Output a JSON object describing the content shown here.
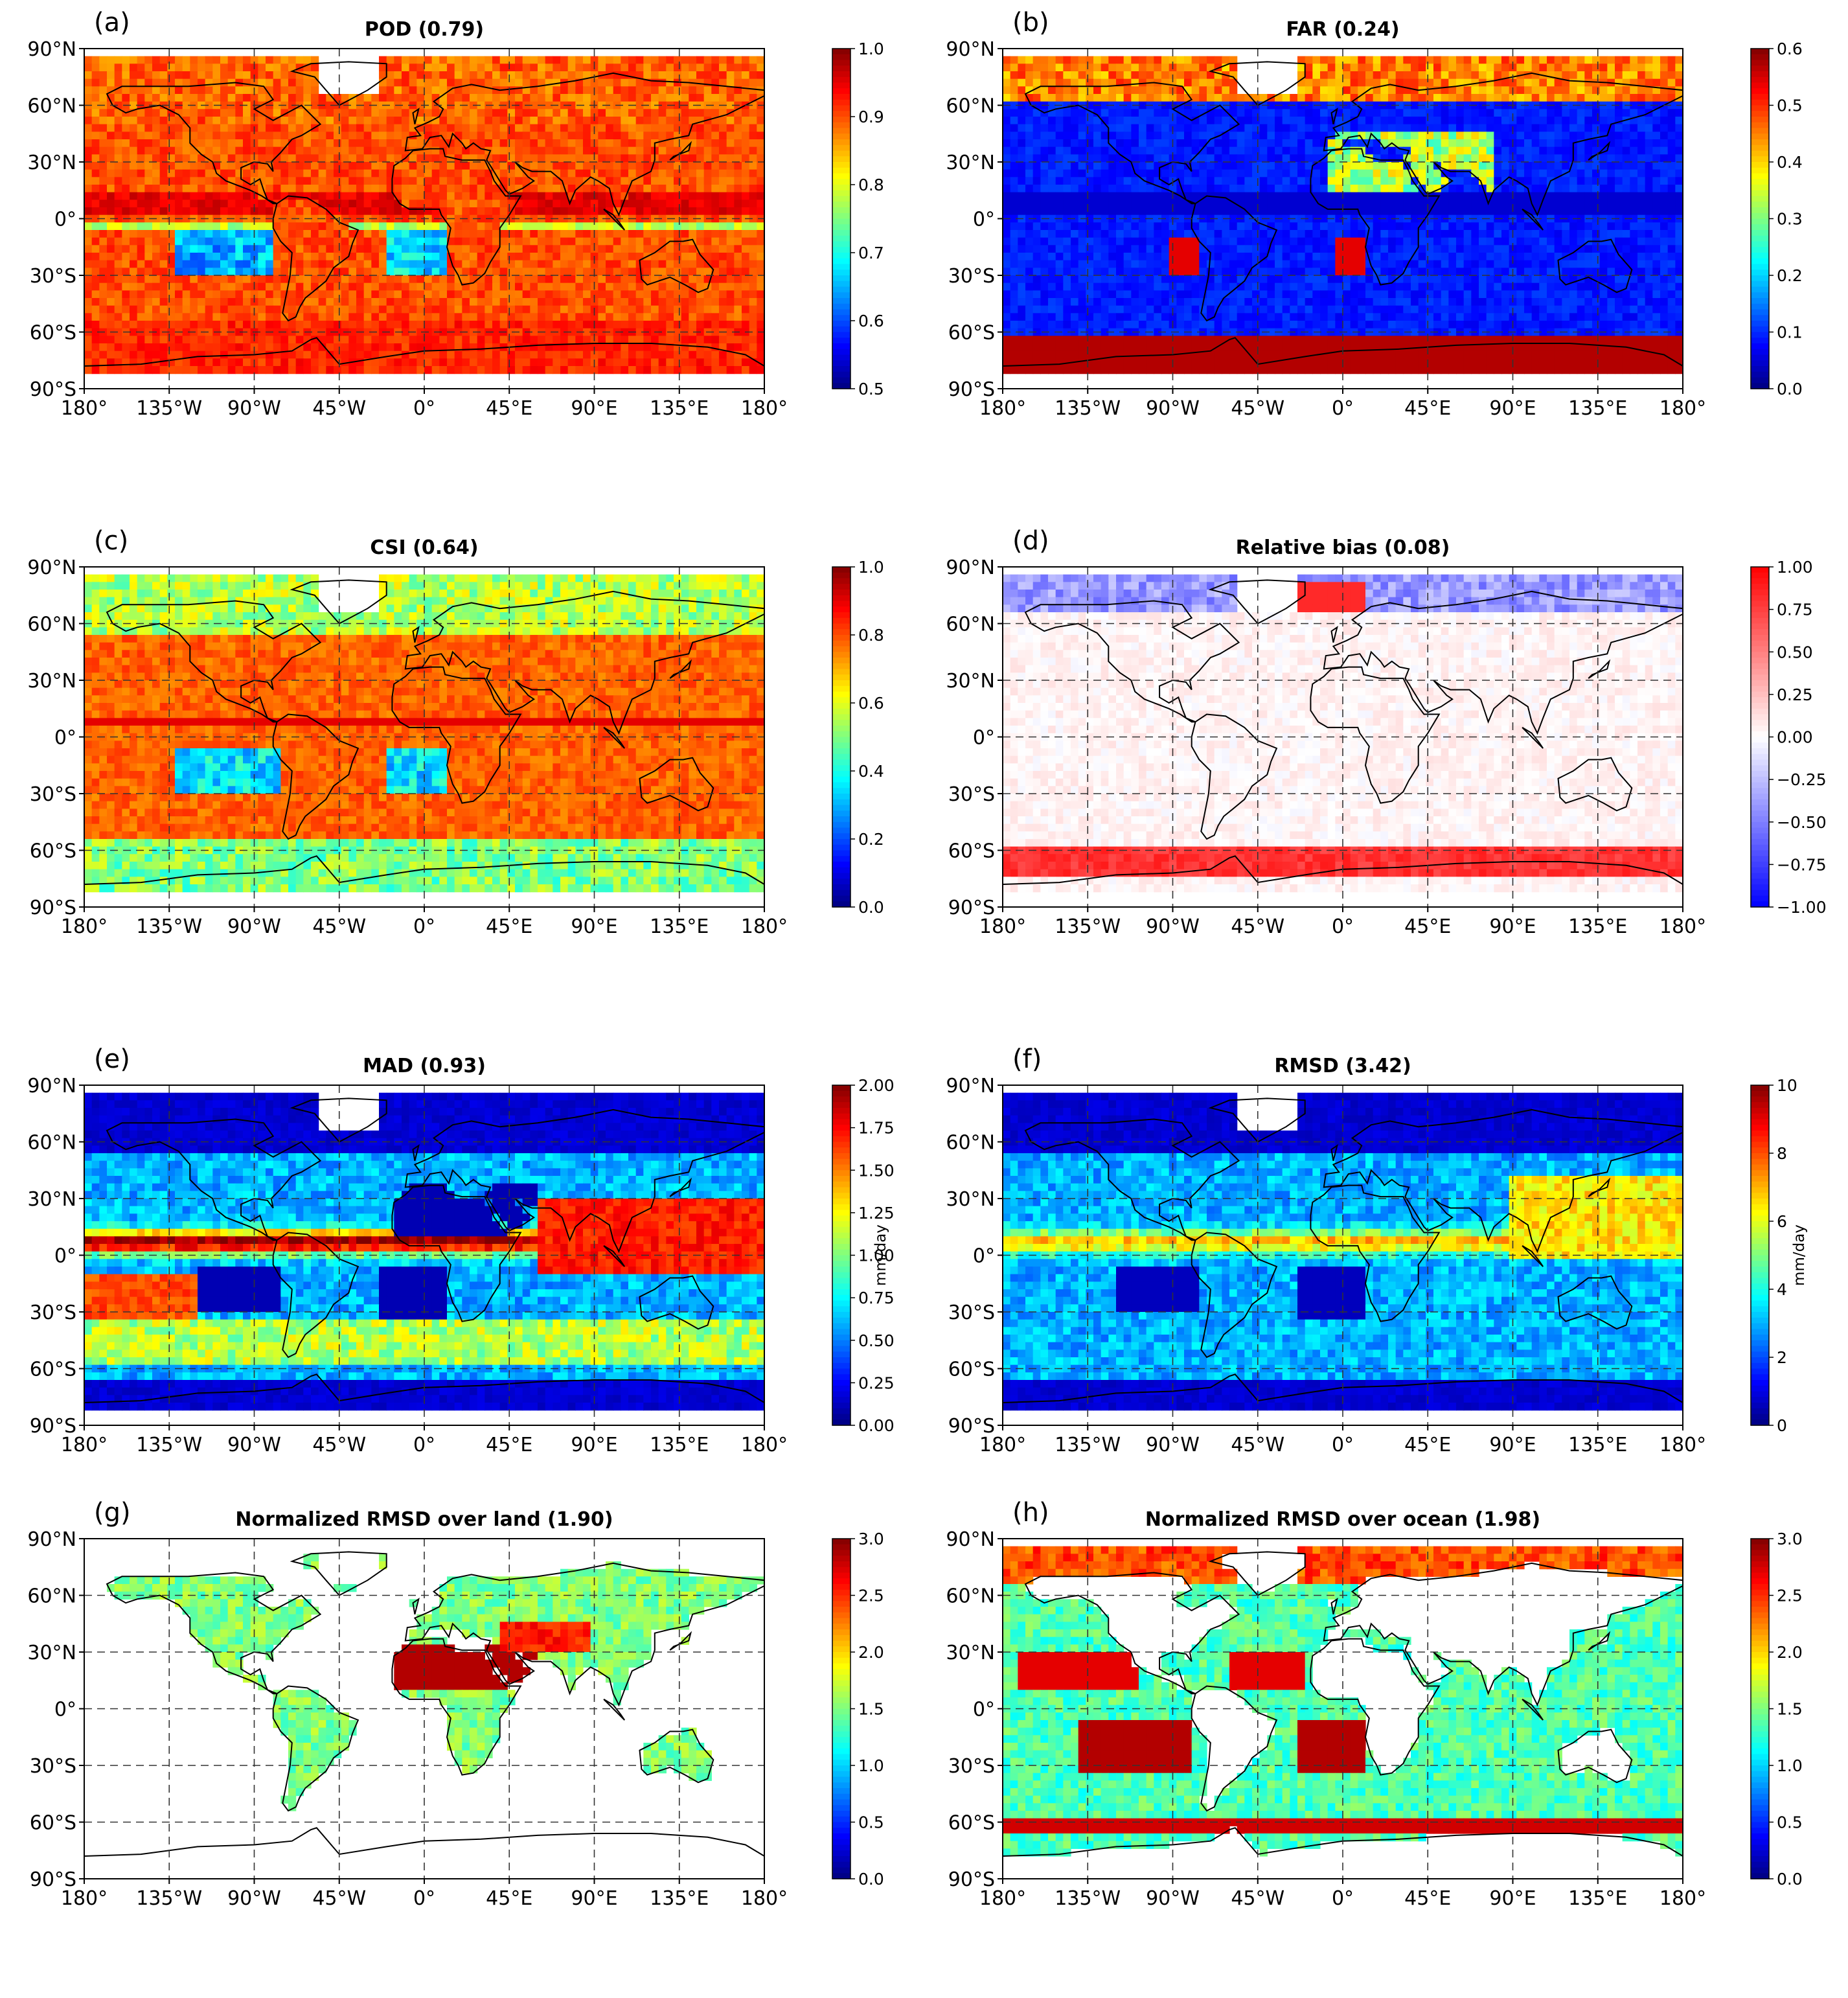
{
  "chart_data": [
    {
      "type": "heatmap",
      "panel_label": "(a)",
      "title": "POD (0.79)",
      "metric": "POD",
      "global_value": 0.79,
      "colormap": "jet",
      "colorbar": {
        "min": 0.5,
        "max": 1.0,
        "ticks": [
          "0.5",
          "0.6",
          "0.7",
          "0.8",
          "0.9",
          "1.0"
        ],
        "label": ""
      },
      "xticks": [
        "180°",
        "135°W",
        "90°W",
        "45°W",
        "0°",
        "45°E",
        "90°E",
        "135°E",
        "180°"
      ],
      "yticks": [
        "90°N",
        "60°N",
        "30°N",
        "0°",
        "30°S",
        "60°S",
        "90°S"
      ],
      "grid": true,
      "style": "pod"
    },
    {
      "type": "heatmap",
      "panel_label": "(b)",
      "title": "FAR (0.24)",
      "metric": "FAR",
      "global_value": 0.24,
      "colormap": "jet",
      "colorbar": {
        "min": 0.0,
        "max": 0.6,
        "ticks": [
          "0.0",
          "0.1",
          "0.2",
          "0.3",
          "0.4",
          "0.5",
          "0.6"
        ],
        "label": ""
      },
      "xticks": [
        "180°",
        "135°W",
        "90°W",
        "45°W",
        "0°",
        "45°E",
        "90°E",
        "135°E",
        "180°"
      ],
      "yticks": [
        "90°N",
        "60°N",
        "30°N",
        "0°",
        "30°S",
        "60°S",
        "90°S"
      ],
      "grid": true,
      "style": "far"
    },
    {
      "type": "heatmap",
      "panel_label": "(c)",
      "title": "CSI (0.64)",
      "metric": "CSI",
      "global_value": 0.64,
      "colormap": "jet",
      "colorbar": {
        "min": 0.0,
        "max": 1.0,
        "ticks": [
          "0.0",
          "0.2",
          "0.4",
          "0.6",
          "0.8",
          "1.0"
        ],
        "label": ""
      },
      "xticks": [
        "180°",
        "135°W",
        "90°W",
        "45°W",
        "0°",
        "45°E",
        "90°E",
        "135°E",
        "180°"
      ],
      "yticks": [
        "90°N",
        "60°N",
        "30°N",
        "0°",
        "30°S",
        "60°S",
        "90°S"
      ],
      "grid": true,
      "style": "csi"
    },
    {
      "type": "heatmap",
      "panel_label": "(d)",
      "title": "Relative bias (0.08)",
      "metric": "Relative bias",
      "global_value": 0.08,
      "colormap": "bwr",
      "colorbar": {
        "min": -1.0,
        "max": 1.0,
        "ticks": [
          "−1.00",
          "−0.75",
          "−0.50",
          "−0.25",
          "0.00",
          "0.25",
          "0.50",
          "0.75",
          "1.00"
        ],
        "label": ""
      },
      "xticks": [
        "180°",
        "135°W",
        "90°W",
        "45°W",
        "0°",
        "45°E",
        "90°E",
        "135°E",
        "180°"
      ],
      "yticks": [
        "90°N",
        "60°N",
        "30°N",
        "0°",
        "30°S",
        "60°S",
        "90°S"
      ],
      "grid": true,
      "style": "bias"
    },
    {
      "type": "heatmap",
      "panel_label": "(e)",
      "title": "MAD (0.93)",
      "metric": "MAD",
      "global_value": 0.93,
      "colormap": "jet",
      "colorbar": {
        "min": 0.0,
        "max": 2.0,
        "ticks": [
          "0.00",
          "0.25",
          "0.50",
          "0.75",
          "1.00",
          "1.25",
          "1.50",
          "1.75",
          "2.00"
        ],
        "label": "mm/day"
      },
      "xticks": [
        "180°",
        "135°W",
        "90°W",
        "45°W",
        "0°",
        "45°E",
        "90°E",
        "135°E",
        "180°"
      ],
      "yticks": [
        "90°N",
        "60°N",
        "30°N",
        "0°",
        "30°S",
        "60°S",
        "90°S"
      ],
      "grid": true,
      "style": "mad"
    },
    {
      "type": "heatmap",
      "panel_label": "(f)",
      "title": "RMSD (3.42)",
      "metric": "RMSD",
      "global_value": 3.42,
      "colormap": "jet",
      "colorbar": {
        "min": 0,
        "max": 10,
        "ticks": [
          "0",
          "2",
          "4",
          "6",
          "8",
          "10"
        ],
        "label": "mm/day"
      },
      "xticks": [
        "180°",
        "135°W",
        "90°W",
        "45°W",
        "0°",
        "45°E",
        "90°E",
        "135°E",
        "180°"
      ],
      "yticks": [
        "90°N",
        "60°N",
        "30°N",
        "0°",
        "30°S",
        "60°S",
        "90°S"
      ],
      "grid": true,
      "style": "rmsd"
    },
    {
      "type": "heatmap",
      "panel_label": "(g)",
      "title": "Normalized RMSD over land (1.90)",
      "metric": "Normalized RMSD over land",
      "global_value": 1.9,
      "colormap": "jet",
      "colorbar": {
        "min": 0.0,
        "max": 3.0,
        "ticks": [
          "0.0",
          "0.5",
          "1.0",
          "1.5",
          "2.0",
          "2.5",
          "3.0"
        ],
        "label": ""
      },
      "xticks": [
        "180°",
        "135°W",
        "90°W",
        "45°W",
        "0°",
        "45°E",
        "90°E",
        "135°E",
        "180°"
      ],
      "yticks": [
        "90°N",
        "60°N",
        "30°N",
        "0°",
        "30°S",
        "60°S",
        "90°S"
      ],
      "grid": true,
      "style": "land"
    },
    {
      "type": "heatmap",
      "panel_label": "(h)",
      "title": "Normalized RMSD over ocean (1.98)",
      "metric": "Normalized RMSD over ocean",
      "global_value": 1.98,
      "colormap": "jet",
      "colorbar": {
        "min": 0.0,
        "max": 3.0,
        "ticks": [
          "0.0",
          "0.5",
          "1.0",
          "1.5",
          "2.0",
          "2.5",
          "3.0"
        ],
        "label": ""
      },
      "xticks": [
        "180°",
        "135°W",
        "90°W",
        "45°W",
        "0°",
        "45°E",
        "90°E",
        "135°E",
        "180°"
      ],
      "yticks": [
        "90°N",
        "60°N",
        "30°N",
        "0°",
        "30°S",
        "60°S",
        "90°S"
      ],
      "grid": true,
      "style": "ocean"
    }
  ]
}
